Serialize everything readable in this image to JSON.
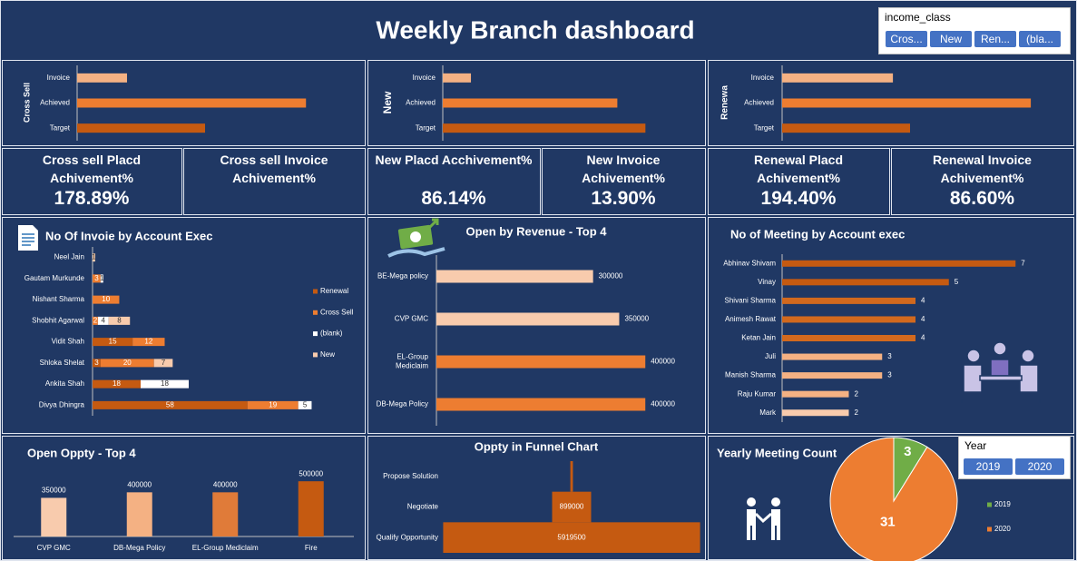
{
  "header": {
    "title": "Weekly Branch dashboard"
  },
  "slicers": [
    {
      "title": "income_class",
      "items": [
        "Cros...",
        "New",
        "Ren...",
        "(bla..."
      ]
    },
    {
      "title": "Year",
      "items": [
        "2019",
        "2020"
      ]
    }
  ],
  "kpis": [
    {
      "title": "Cross sell Placd Achivement%",
      "value": "178.89%"
    },
    {
      "title": "Cross sell Invoice Achivement%"
    },
    {
      "title": "New Placd Acchivement%",
      "value": "86.14%"
    },
    {
      "title": "New Invoice Achivement%",
      "value": "13.90%"
    },
    {
      "title": "Renewal Placd Achivement%",
      "value": "194.40%"
    },
    {
      "title": "Renewal Invoice Achivement%",
      "value": "86.60%"
    }
  ],
  "chart_data": [
    {
      "type": "hbar",
      "ylabel": "Cross Sell",
      "categories": [
        "Invoice",
        "Achieved",
        "Target"
      ],
      "values": [
        39,
        178.89,
        100
      ],
      "colors": [
        "#f4b183",
        "#ed7d31",
        "#c55a11"
      ],
      "xlim": [
        0,
        200
      ]
    },
    {
      "type": "hbar",
      "ylabel": "New",
      "categories": [
        "Invoice",
        "Achieved",
        "Target"
      ],
      "values": [
        13.9,
        86.14,
        100
      ],
      "colors": [
        "#f4b183",
        "#ed7d31",
        "#c55a11"
      ],
      "xlim": [
        0,
        120
      ]
    },
    {
      "type": "hbar",
      "ylabel": "Renewa",
      "categories": [
        "Invoice",
        "Achieved",
        "Target"
      ],
      "values": [
        86.6,
        194.4,
        100
      ],
      "colors": [
        "#f4b183",
        "#ed7d31",
        "#c55a11"
      ],
      "xlim": [
        0,
        200
      ]
    },
    {
      "type": "stacked_hbar",
      "title": "No Of Invoie by Account Exec",
      "categories": [
        "Neel Jain",
        "Gautam Murkunde",
        "Nishant Sharma",
        "Shobhit Agarwal",
        "Vidit Shah",
        "Shloka Shelat",
        "Ankita Shah",
        "Divya Dhingra"
      ],
      "series": [
        {
          "name": "Renewal",
          "color": "#c55a11",
          "values": [
            null,
            null,
            null,
            null,
            15,
            3,
            18,
            58
          ]
        },
        {
          "name": "Cross Sell",
          "color": "#ed7d31",
          "values": [
            null,
            3,
            10,
            2,
            12,
            20,
            null,
            19
          ]
        },
        {
          "name": "(blank)",
          "color": "#ffffff",
          "values": [
            null,
            1,
            null,
            4,
            null,
            null,
            18,
            5
          ]
        },
        {
          "name": "New",
          "color": "#f8cbad",
          "values": [
            1,
            null,
            null,
            8,
            null,
            7,
            null,
            null
          ]
        }
      ],
      "xlim": [
        0,
        90
      ]
    },
    {
      "type": "hbar",
      "title": "Open by Revenue - Top 4",
      "categories": [
        "BE-Mega policy",
        "CVP GMC",
        "EL-Group Mediclaim",
        "DB-Mega Policy"
      ],
      "values": [
        300000,
        350000,
        400000,
        400000
      ],
      "colors": [
        "#f8cbad",
        "#f8cbad",
        "#ed7d31",
        "#ed7d31"
      ],
      "xlim": [
        0,
        450000
      ]
    },
    {
      "type": "hbar",
      "title": "No of Meeting by Account exec",
      "categories": [
        "Abhinav Shivam",
        "Vinay",
        "Shivani Sharma",
        "Animesh Rawat",
        "Ketan Jain",
        "Juli",
        "Manish Sharma",
        "Raju Kumar",
        "Mark"
      ],
      "values": [
        7,
        5,
        4,
        4,
        4,
        3,
        3,
        2,
        2
      ],
      "colors": [
        "#c55a11",
        "#c55a11",
        "#d2691e",
        "#d2691e",
        "#d2691e",
        "#f4b183",
        "#f4b183",
        "#f4b183",
        "#f8cbad"
      ],
      "xlim": [
        0,
        8
      ]
    },
    {
      "type": "bar",
      "title": "Open Oppty - Top 4",
      "categories": [
        "CVP GMC",
        "DB-Mega Policy",
        "EL-Group Mediclaim",
        "Fire"
      ],
      "values": [
        350000,
        400000,
        400000,
        500000
      ],
      "colors": [
        "#f8cbad",
        "#f4b183",
        "#e07b39",
        "#c55a11"
      ],
      "ylim": [
        0,
        600000
      ]
    },
    {
      "type": "funnel",
      "title": "Oppty in Funnel Chart",
      "categories": [
        "Propose Solution",
        "Negotiate",
        "Qualify Opportunity"
      ],
      "values": [
        60000,
        899000,
        5919500
      ],
      "color": "#c55a11",
      "xlim": [
        0,
        6000000
      ]
    },
    {
      "type": "pie",
      "title": "Yearly Meeting Count",
      "categories": [
        "2019",
        "2020"
      ],
      "values": [
        3,
        31
      ],
      "colors": [
        "#70ad47",
        "#ed7d31"
      ]
    }
  ]
}
